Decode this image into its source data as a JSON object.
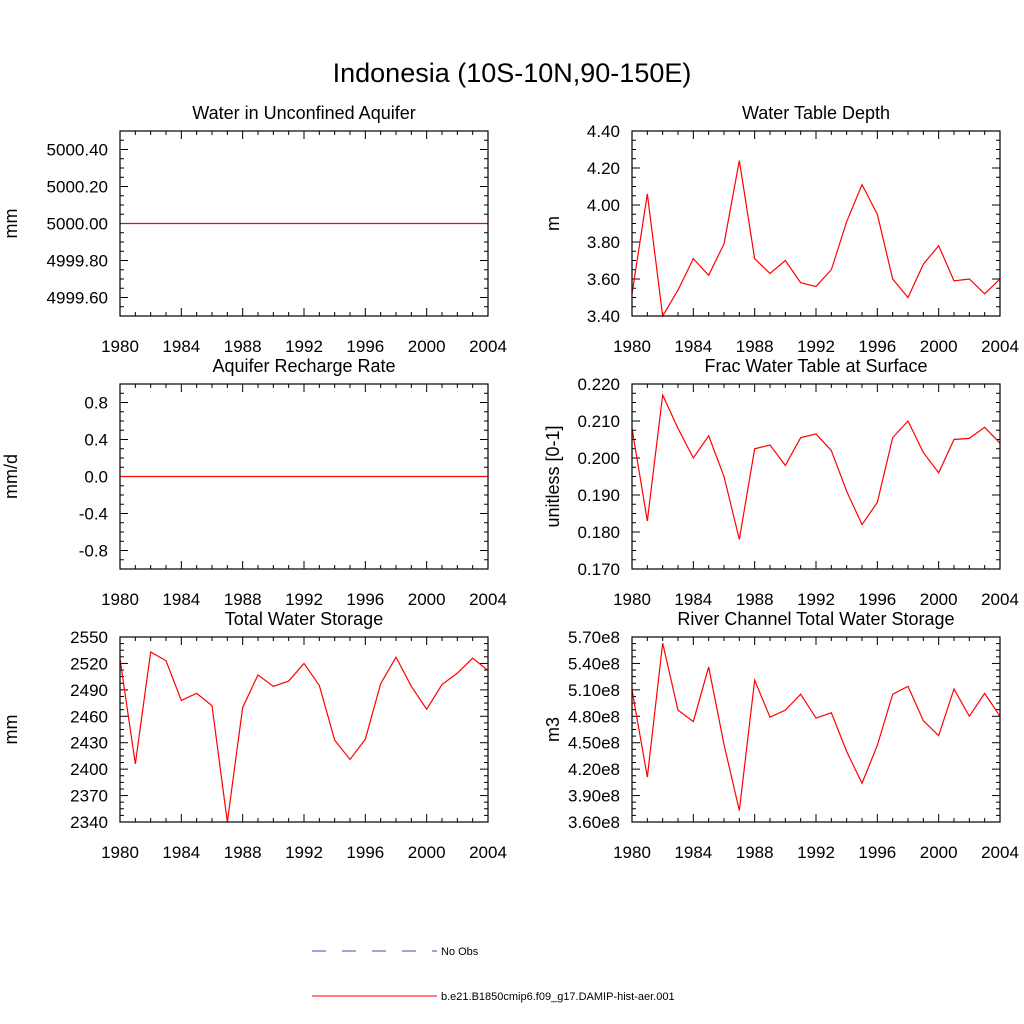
{
  "title": "Indonesia (10S-10N,90-150E)",
  "colors": {
    "series": "#ff0000",
    "obs": "#4a4aa8",
    "axis": "#000000",
    "background": "#ffffff"
  },
  "legend": {
    "placement": "bottom-center",
    "entries": [
      {
        "label": "No Obs",
        "style": "dashed",
        "color": "#4a4aa8"
      },
      {
        "label": "b.e21.B1850cmip6.f09_g17.DAMIP-hist-aer.001",
        "style": "solid",
        "color": "#ff0000"
      }
    ]
  },
  "chart_data": [
    {
      "type": "line",
      "title": "Water in Unconfined Aquifer",
      "xlabel": "",
      "ylabel": "mm",
      "xlim": [
        1980,
        2004
      ],
      "ylim": [
        4999.5,
        5000.5
      ],
      "xticks": [
        1980,
        1984,
        1988,
        1992,
        1996,
        2000,
        2004
      ],
      "yticks": [
        4999.6,
        4999.8,
        5000.0,
        5000.2,
        5000.4
      ],
      "ytick_labels": [
        "4999.60",
        "4999.80",
        "5000.00",
        "5000.20",
        "5000.40"
      ],
      "grid": false,
      "series": [
        {
          "values": [
            5000,
            5000,
            5000,
            5000,
            5000,
            5000,
            5000,
            5000,
            5000,
            5000,
            5000,
            5000,
            5000,
            5000,
            5000,
            5000,
            5000,
            5000,
            5000,
            5000,
            5000,
            5000,
            5000,
            5000,
            5000
          ]
        }
      ]
    },
    {
      "type": "line",
      "title": "Water Table Depth",
      "xlabel": "",
      "ylabel": "m",
      "xlim": [
        1980,
        2004
      ],
      "ylim": [
        3.4,
        4.4
      ],
      "xticks": [
        1980,
        1984,
        1988,
        1992,
        1996,
        2000,
        2004
      ],
      "yticks": [
        3.4,
        3.6,
        3.8,
        4.0,
        4.2,
        4.4
      ],
      "ytick_labels": [
        "3.40",
        "3.60",
        "3.80",
        "4.00",
        "4.20",
        "4.40"
      ],
      "grid": false,
      "series": [
        {
          "values": [
            3.52,
            4.06,
            3.4,
            3.54,
            3.71,
            3.62,
            3.79,
            4.24,
            3.71,
            3.63,
            3.7,
            3.58,
            3.56,
            3.65,
            3.91,
            4.11,
            3.95,
            3.6,
            3.5,
            3.68,
            3.78,
            3.59,
            3.6,
            3.52,
            3.6
          ]
        }
      ]
    },
    {
      "type": "line",
      "title": "Aquifer Recharge Rate",
      "xlabel": "",
      "ylabel": "mm/d",
      "xlim": [
        1980,
        2004
      ],
      "ylim": [
        -1.0,
        1.0
      ],
      "xticks": [
        1980,
        1984,
        1988,
        1992,
        1996,
        2000,
        2004
      ],
      "yticks": [
        -0.8,
        -0.4,
        0.0,
        0.4,
        0.8
      ],
      "ytick_labels": [
        "-0.8",
        "-0.4",
        "0.0",
        "0.4",
        "0.8"
      ],
      "grid": false,
      "series": [
        {
          "values": [
            0,
            0,
            0,
            0,
            0,
            0,
            0,
            0,
            0,
            0,
            0,
            0,
            0,
            0,
            0,
            0,
            0,
            0,
            0,
            0,
            0,
            0,
            0,
            0,
            0
          ]
        }
      ]
    },
    {
      "type": "line",
      "title": "Frac Water Table at Surface",
      "xlabel": "",
      "ylabel": "unitless [0-1]",
      "xlim": [
        1980,
        2004
      ],
      "ylim": [
        0.17,
        0.22
      ],
      "xticks": [
        1980,
        1984,
        1988,
        1992,
        1996,
        2000,
        2004
      ],
      "yticks": [
        0.17,
        0.18,
        0.19,
        0.2,
        0.21,
        0.22
      ],
      "ytick_labels": [
        "0.170",
        "0.180",
        "0.190",
        "0.200",
        "0.210",
        "0.220"
      ],
      "grid": false,
      "series": [
        {
          "values": [
            0.208,
            0.183,
            0.217,
            0.208,
            0.2,
            0.206,
            0.195,
            0.178,
            0.2025,
            0.2035,
            0.198,
            0.2055,
            0.2065,
            0.202,
            0.191,
            0.182,
            0.188,
            0.2055,
            0.21,
            0.2015,
            0.196,
            0.205,
            0.2053,
            0.2083,
            0.204
          ]
        }
      ]
    },
    {
      "type": "line",
      "title": "Total Water Storage",
      "xlabel": "",
      "ylabel": "mm",
      "xlim": [
        1980,
        2004
      ],
      "ylim": [
        2340,
        2550
      ],
      "xticks": [
        1980,
        1984,
        1988,
        1992,
        1996,
        2000,
        2004
      ],
      "yticks": [
        2340,
        2370,
        2400,
        2430,
        2460,
        2490,
        2520,
        2550
      ],
      "ytick_labels": [
        "2340",
        "2370",
        "2400",
        "2430",
        "2460",
        "2490",
        "2520",
        "2550"
      ],
      "grid": false,
      "series": [
        {
          "values": [
            2525,
            2406,
            2533,
            2523,
            2478,
            2486,
            2472,
            2340,
            2470,
            2507,
            2494,
            2500,
            2520,
            2495,
            2433,
            2411,
            2434,
            2497,
            2527,
            2494,
            2468,
            2496,
            2509,
            2526,
            2512
          ]
        }
      ]
    },
    {
      "type": "line",
      "title": "River Channel Total Water Storage",
      "xlabel": "",
      "ylabel": "m3",
      "xlim": [
        1980,
        2004
      ],
      "ylim": [
        360000000,
        570000000
      ],
      "xticks": [
        1980,
        1984,
        1988,
        1992,
        1996,
        2000,
        2004
      ],
      "yticks": [
        360000000,
        390000000,
        420000000,
        450000000,
        480000000,
        510000000,
        540000000,
        570000000
      ],
      "ytick_labels": [
        "3.60e8",
        "3.90e8",
        "4.20e8",
        "4.50e8",
        "4.80e8",
        "5.10e8",
        "5.40e8",
        "5.70e8"
      ],
      "grid": false,
      "series": [
        {
          "values": [
            510000000,
            411000000,
            563000000,
            487000000,
            474000000,
            536000000,
            448000000,
            373000000,
            521000000,
            479000000,
            487000000,
            505000000,
            478000000,
            484000000,
            440000000,
            404000000,
            447000000,
            505000000,
            514000000,
            475000000,
            458000000,
            511000000,
            480000000,
            506000000,
            480000000
          ]
        }
      ]
    }
  ]
}
